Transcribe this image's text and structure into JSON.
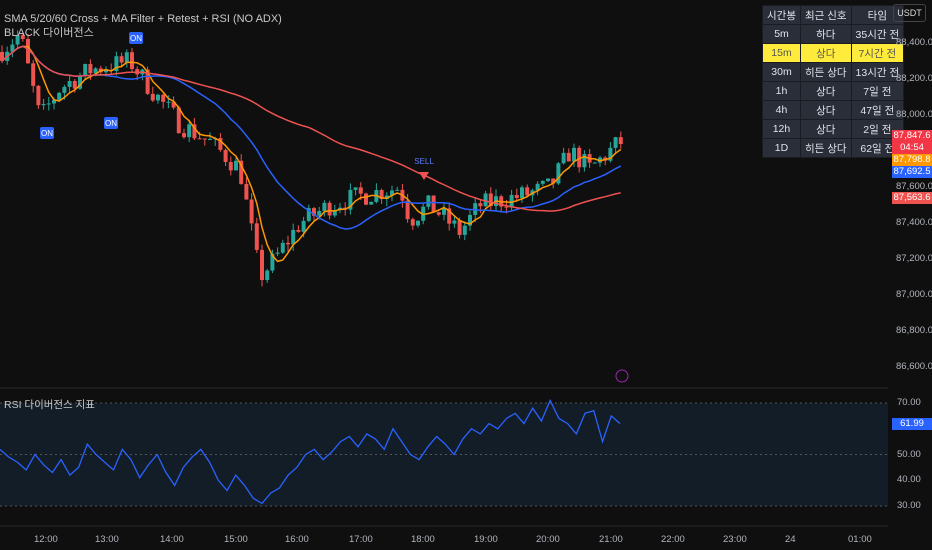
{
  "indicator": {
    "title": "SMA 5/20/60 Cross + MA Filter + Retest + RSI (NO ADX)",
    "subtitle": "BLACK 다이버전스"
  },
  "rsi_pane": {
    "title": "RSI 다이버전스 지표",
    "value": "61.99",
    "levels": [
      "70.00",
      "50.00",
      "40.00",
      "30.00"
    ]
  },
  "currency": "USDT",
  "table": {
    "headers": [
      "시간봉",
      "최근 신호",
      "타임"
    ],
    "rows": [
      [
        "5m",
        "하다",
        "35시간 전"
      ],
      [
        "15m",
        "상다",
        "7시간 전"
      ],
      [
        "30m",
        "히든 상다",
        "13시간 전"
      ],
      [
        "1h",
        "상다",
        "7일 전"
      ],
      [
        "4h",
        "상다",
        "47일 전"
      ],
      [
        "12h",
        "상다",
        "2일 전"
      ],
      [
        "1D",
        "히든 상다",
        "62일 전"
      ]
    ],
    "highlight_row": 1
  },
  "price_axis": [
    "88,400.0",
    "88,200.0",
    "88,000.0",
    "87,600.0",
    "87,400.0",
    "87,200.0",
    "87,000.0",
    "86,800.0",
    "86,600.0"
  ],
  "price_tags": [
    {
      "text": "87,847.6",
      "sub": "04:54",
      "color": "#f23645"
    },
    {
      "text": "87,798.8",
      "color": "#ff9800"
    },
    {
      "text": "87,692.5",
      "color": "#2962ff"
    },
    {
      "text": "87,563.6",
      "color": "#ef5350"
    }
  ],
  "time_axis": [
    "12:00",
    "13:00",
    "14:00",
    "15:00",
    "16:00",
    "17:00",
    "18:00",
    "19:00",
    "20:00",
    "21:00",
    "22:00",
    "23:00",
    "24",
    "01:00"
  ],
  "markers": {
    "on": "ON",
    "sell": "SELL"
  },
  "colors": {
    "up": "#26a69a",
    "down": "#ef5350",
    "sma5": "#ff9800",
    "sma20": "#2962ff",
    "sma60": "#ef5350",
    "rsi": "#2962ff"
  },
  "price_path": [
    [
      0,
      88350
    ],
    [
      20,
      88450
    ],
    [
      40,
      87980
    ],
    [
      60,
      88150
    ],
    [
      90,
      88250
    ],
    [
      130,
      88300
    ],
    [
      150,
      88150
    ],
    [
      180,
      87950
    ],
    [
      210,
      87850
    ],
    [
      240,
      87700
    ],
    [
      250,
      87400
    ],
    [
      260,
      87100
    ],
    [
      275,
      87200
    ],
    [
      300,
      87400
    ],
    [
      330,
      87500
    ],
    [
      360,
      87550
    ],
    [
      400,
      87600
    ],
    [
      410,
      87420
    ],
    [
      430,
      87500
    ],
    [
      460,
      87350
    ],
    [
      480,
      87500
    ],
    [
      520,
      87550
    ],
    [
      550,
      87600
    ],
    [
      570,
      87800
    ],
    [
      590,
      87700
    ],
    [
      620,
      87850
    ]
  ],
  "rsi_values": [
    52,
    49,
    47,
    44,
    50,
    46,
    43,
    48,
    42,
    45,
    54,
    50,
    47,
    44,
    52,
    48,
    41,
    46,
    50,
    43,
    38,
    45,
    49,
    52,
    47,
    40,
    36,
    42,
    38,
    33,
    31,
    35,
    37,
    42,
    45,
    50,
    52,
    48,
    51,
    55,
    57,
    53,
    58,
    56,
    52,
    60,
    55,
    50,
    48,
    53,
    57,
    54,
    50,
    56,
    60,
    58,
    62,
    60,
    64,
    66,
    62,
    68,
    63,
    71,
    64,
    62,
    58,
    66,
    67,
    55,
    65,
    62
  ]
}
